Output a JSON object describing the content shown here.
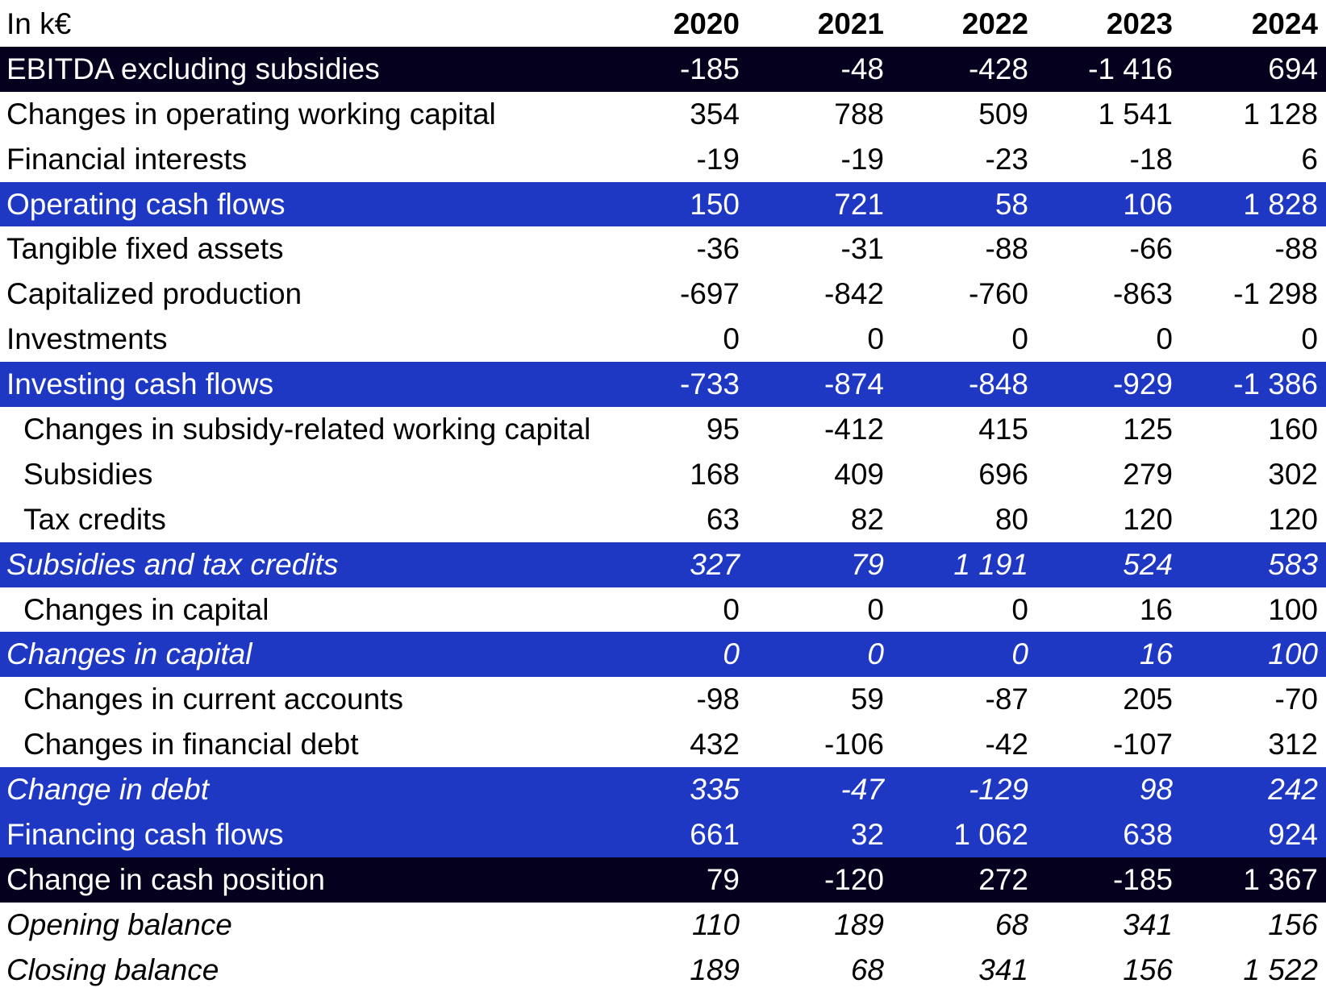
{
  "table": {
    "unit_label": "In k€",
    "years": [
      "2020",
      "2021",
      "2022",
      "2023",
      "2024"
    ],
    "rows": [
      {
        "label": "EBITDA excluding subsidies",
        "style": "dark",
        "indent": false,
        "values": [
          "-185",
          "-48",
          "-428",
          "-1 416",
          "694"
        ]
      },
      {
        "label": "Changes in operating working capital",
        "style": "plain",
        "indent": false,
        "values": [
          "354",
          "788",
          "509",
          "1 541",
          "1 128"
        ]
      },
      {
        "label": "Financial interests",
        "style": "plain",
        "indent": false,
        "values": [
          "-19",
          "-19",
          "-23",
          "-18",
          "6"
        ]
      },
      {
        "label": "Operating cash flows",
        "style": "blue",
        "indent": false,
        "values": [
          "150",
          "721",
          "58",
          "106",
          "1 828"
        ]
      },
      {
        "label": "Tangible fixed assets",
        "style": "plain",
        "indent": false,
        "values": [
          "-36",
          "-31",
          "-88",
          "-66",
          "-88"
        ]
      },
      {
        "label": "Capitalized production",
        "style": "plain",
        "indent": false,
        "values": [
          "-697",
          "-842",
          "-760",
          "-863",
          "-1 298"
        ]
      },
      {
        "label": "Investments",
        "style": "plain",
        "indent": false,
        "values": [
          "0",
          "0",
          "0",
          "0",
          "0"
        ]
      },
      {
        "label": "Investing cash flows",
        "style": "blue",
        "indent": false,
        "values": [
          "-733",
          "-874",
          "-848",
          "-929",
          "-1 386"
        ]
      },
      {
        "label": "Changes in subsidy-related working capital",
        "style": "plain",
        "indent": true,
        "values": [
          "95",
          "-412",
          "415",
          "125",
          "160"
        ]
      },
      {
        "label": "Subsidies",
        "style": "plain",
        "indent": true,
        "values": [
          "168",
          "409",
          "696",
          "279",
          "302"
        ]
      },
      {
        "label": "Tax credits",
        "style": "plain",
        "indent": true,
        "values": [
          "63",
          "82",
          "80",
          "120",
          "120"
        ]
      },
      {
        "label": "Subsidies and tax credits",
        "style": "blue-italic",
        "indent": false,
        "values": [
          "327",
          "79",
          "1 191",
          "524",
          "583"
        ]
      },
      {
        "label": "Changes in capital",
        "style": "plain",
        "indent": true,
        "values": [
          "0",
          "0",
          "0",
          "16",
          "100"
        ]
      },
      {
        "label": "Changes in capital",
        "style": "blue-italic",
        "indent": false,
        "values": [
          "0",
          "0",
          "0",
          "16",
          "100"
        ]
      },
      {
        "label": "Changes in current accounts",
        "style": "plain",
        "indent": true,
        "values": [
          "-98",
          "59",
          "-87",
          "205",
          "-70"
        ]
      },
      {
        "label": "Changes in financial debt",
        "style": "plain",
        "indent": true,
        "values": [
          "432",
          "-106",
          "-42",
          "-107",
          "312"
        ]
      },
      {
        "label": "Change in debt",
        "style": "blue-italic",
        "indent": false,
        "values": [
          "335",
          "-47",
          "-129",
          "98",
          "242"
        ]
      },
      {
        "label": "Financing cash flows",
        "style": "blue",
        "indent": false,
        "values": [
          "661",
          "32",
          "1 062",
          "638",
          "924"
        ]
      },
      {
        "label": "Change in cash position",
        "style": "dark",
        "indent": false,
        "values": [
          "79",
          "-120",
          "272",
          "-185",
          "1 367"
        ]
      },
      {
        "label": "Opening balance",
        "style": "italic",
        "indent": false,
        "values": [
          "110",
          "189",
          "68",
          "341",
          "156"
        ]
      },
      {
        "label": "Closing balance",
        "style": "italic",
        "indent": false,
        "values": [
          "189",
          "68",
          "341",
          "156",
          "1 522"
        ]
      }
    ]
  },
  "colors": {
    "dark_row": "#05001e",
    "blue_row": "#1e38c4",
    "text": "#000000",
    "inverse_text": "#ffffff"
  }
}
